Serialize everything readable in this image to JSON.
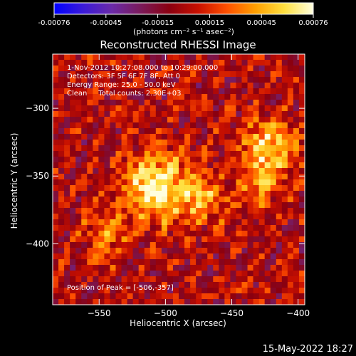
{
  "colorbar": {
    "ticks": [
      "-0.00076",
      "-0.00045",
      "-0.00015",
      "0.00015",
      "0.00045",
      "0.00076"
    ],
    "units": "(photons cm⁻² s⁻¹ asec⁻²)"
  },
  "footer_timestamp": "15-May-2022 18:27",
  "chart_data": {
    "type": "heatmap",
    "title": "Reconstructed RHESSI Image",
    "xlabel": "Heliocentric X (arcsec)",
    "ylabel": "Heliocentric Y (arcsec)",
    "xlim": [
      -585,
      -395
    ],
    "ylim": [
      -445,
      -260
    ],
    "xticks": [
      -550,
      -500,
      -450,
      -400
    ],
    "yticks": [
      -300,
      -350,
      -400
    ],
    "clim": [
      -0.00076,
      0.00076
    ],
    "colormap": [
      "#0000ff",
      "#3a1ad8",
      "#6a2aa8",
      "#7a1a5a",
      "#8a0010",
      "#c81000",
      "#ff5000",
      "#ffa000",
      "#ffe040",
      "#ffffe0"
    ],
    "annotations": [
      "1-Nov-2012 10:27:08.000 to 10:29:00.000",
      "Detectors: 3F 5F 6F 7F 8F, Att 0",
      "Energy Range: 25.0 - 50.0 keV",
      "Clean     Total counts: 2.30E+03"
    ],
    "peak_label": "Position of Peak = [-506,-357]",
    "peak": [
      -506,
      -357
    ],
    "sources": [
      {
        "x": -506,
        "y": -357,
        "peak": 0.00076,
        "sigma": 17
      },
      {
        "x": -422,
        "y": -330,
        "peak": 0.0006,
        "sigma": 15
      },
      {
        "x": -472,
        "y": -368,
        "peak": 0.0004,
        "sigma": 13
      },
      {
        "x": -545,
        "y": -395,
        "peak": 0.00035,
        "sigma": 12
      },
      {
        "x": -430,
        "y": -360,
        "peak": 0.00038,
        "sigma": 10
      }
    ]
  }
}
